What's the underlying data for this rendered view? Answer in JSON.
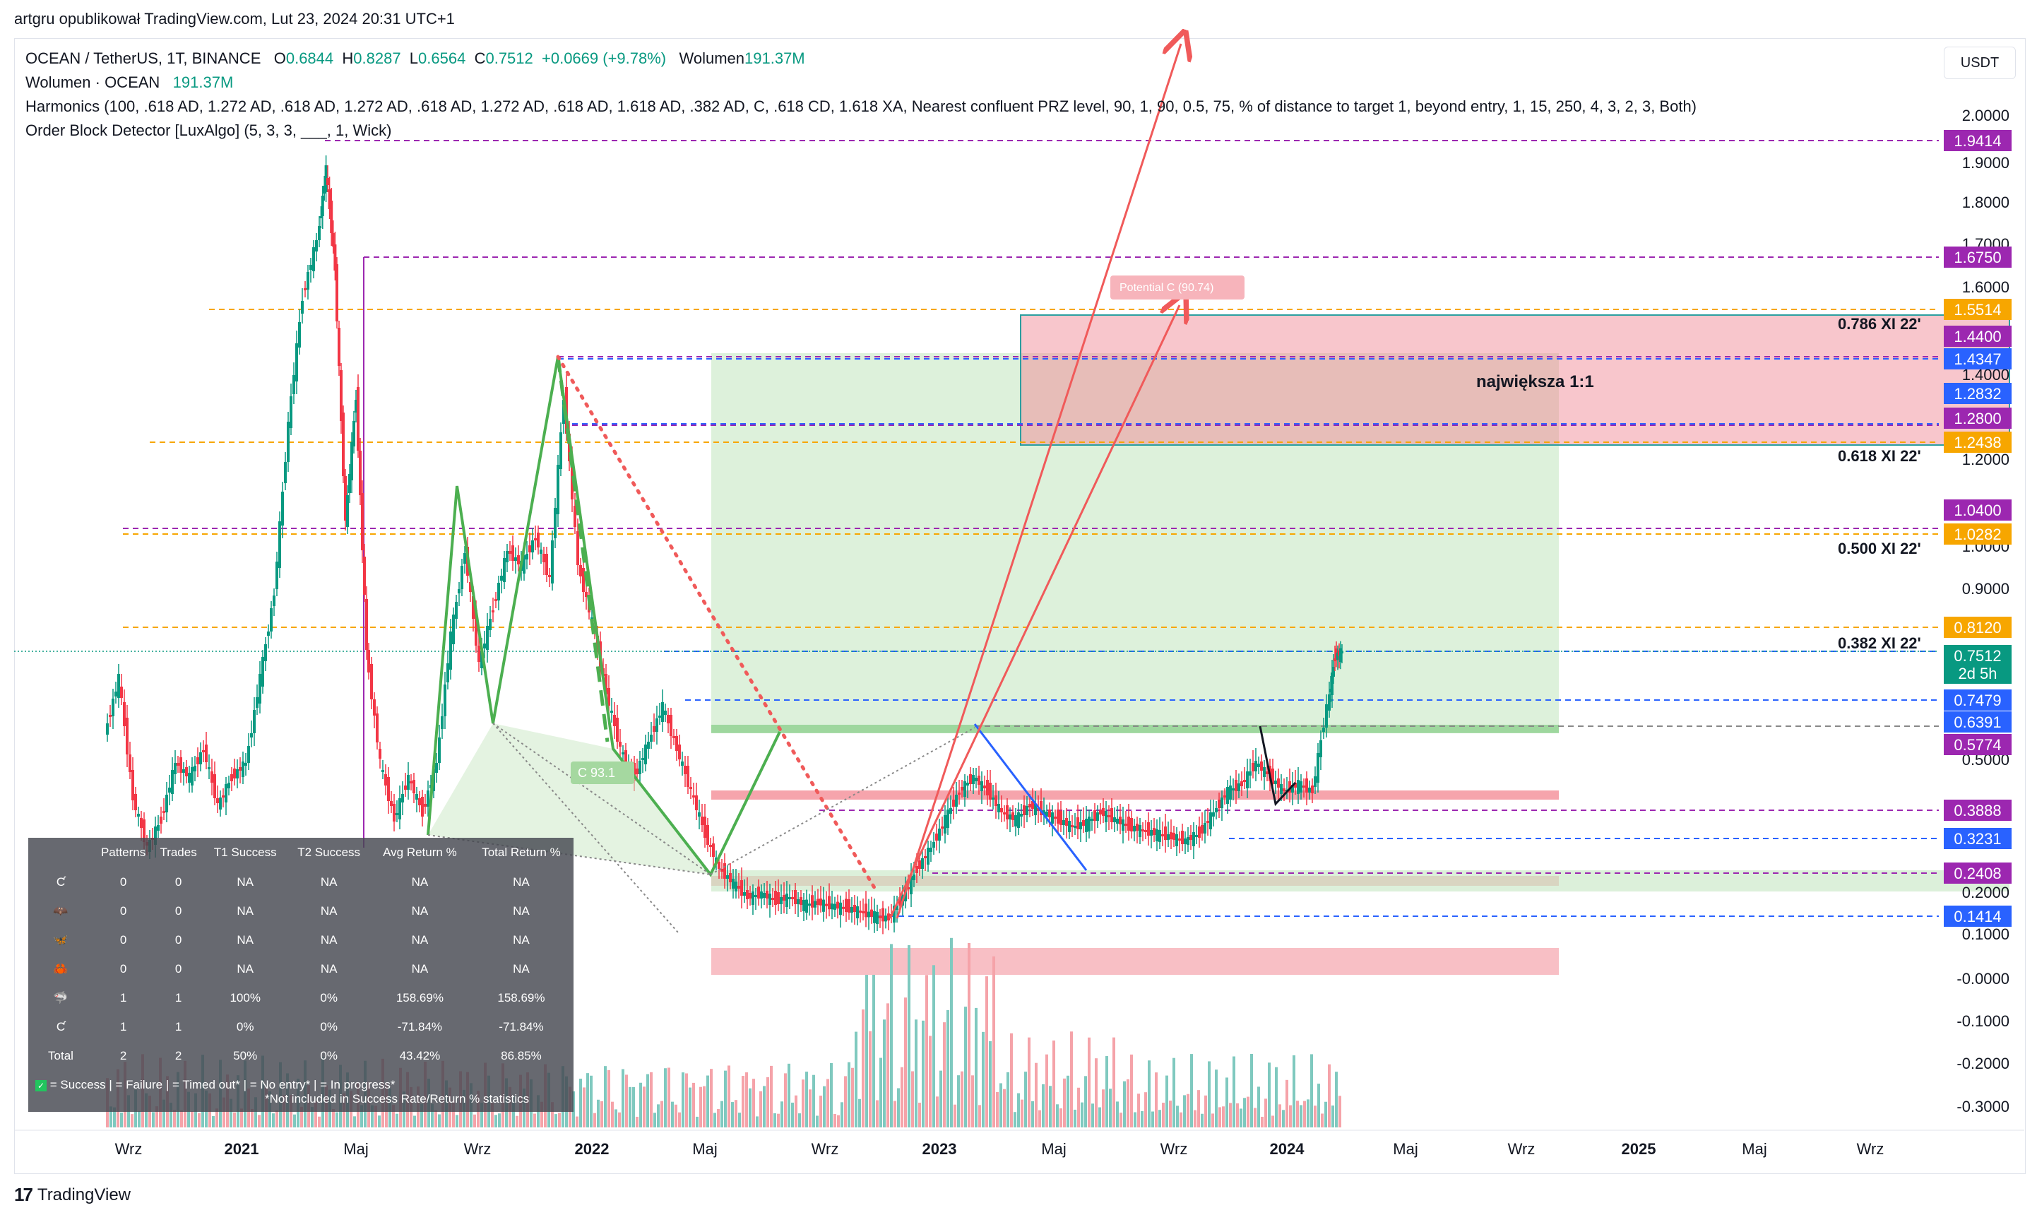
{
  "credit": "artgru opublikował TradingView.com, Lut 23, 2024 20:31 UTC+1",
  "legend": {
    "symbol": "OCEAN / TetherUS, 1T, BINANCE",
    "o_label": "O",
    "o": "0.6844",
    "h_label": "H",
    "h": "0.8287",
    "l_label": "L",
    "l": "0.6564",
    "c_label": "C",
    "c": "0.7512",
    "change": "+0.0669 (+9.78%)",
    "vol_label": "Wolumen",
    "vol": "191.37M",
    "volume_line_label": "Wolumen · OCEAN",
    "volume_line_value": "191.37M",
    "harmonics": "Harmonics (100, .618 AD, 1.272 AD, .618 AD, 1.272 AD, .618 AD, 1.272 AD, .618 AD, 1.618 AD, .382 AD, C, .618 CD, 1.618 XA, Nearest confluent PRZ level, 90, 1, 90, 0.5, 75, % of distance to target 1, beyond entry, 1, 15, 250, 4, 3, 2, 3, Both)",
    "order_block": "Order Block Detector [LuxAlgo] (5, 3, 3, ___, 1, Wick)"
  },
  "currency_button": "USDT",
  "brand": "TradingView",
  "colors": {
    "up": "#089981",
    "down": "#f23645",
    "orange": "#f7a600",
    "purple": "#9c27b0",
    "blue": "#2962ff"
  },
  "chart_data": {
    "type": "candlestick",
    "y_axis": {
      "scale": "log",
      "ticks": [
        "2.0000",
        "1.9000",
        "1.8000",
        "1.7000",
        "1.6000",
        "1.5000",
        "1.4000",
        "1.3000",
        "1.2000",
        "1.0000",
        "0.9000",
        "0.5000",
        "0.2000",
        "0.1000",
        "-0.0000",
        "-0.1000",
        "-0.2000",
        "-0.3000"
      ]
    },
    "x_axis": {
      "labels": [
        "Wrz",
        "2021",
        "Maj",
        "Wrz",
        "2022",
        "Maj",
        "Wrz",
        "2023",
        "Maj",
        "Wrz",
        "2024",
        "Maj",
        "Wrz",
        "2025",
        "Maj",
        "Wrz"
      ]
    },
    "price_labels": [
      {
        "value": "1.9414",
        "color": "#9c27b0"
      },
      {
        "value": "1.6750",
        "color": "#9c27b0"
      },
      {
        "value": "1.5514",
        "color": "#f7a600"
      },
      {
        "value": "1.4400",
        "color": "#9c27b0"
      },
      {
        "value": "1.4347",
        "color": "#2962ff"
      },
      {
        "value": "1.2832",
        "color": "#2962ff"
      },
      {
        "value": "1.2800",
        "color": "#9c27b0"
      },
      {
        "value": "1.2438",
        "color": "#f7a600"
      },
      {
        "value": "1.0400",
        "color": "#9c27b0"
      },
      {
        "value": "1.0282",
        "color": "#f7a600"
      },
      {
        "value": "0.8120",
        "color": "#f7a600"
      },
      {
        "value": "0.7512",
        "color": "#089981"
      },
      {
        "value": "2d 5h",
        "color": "#089981"
      },
      {
        "value": "0.7479",
        "color": "#2962ff"
      },
      {
        "value": "0.6391",
        "color": "#2962ff"
      },
      {
        "value": "0.5774",
        "color": "#9c27b0"
      },
      {
        "value": "0.3888",
        "color": "#9c27b0"
      },
      {
        "value": "0.3231",
        "color": "#2962ff"
      },
      {
        "value": "0.2408",
        "color": "#9c27b0"
      },
      {
        "value": "0.1414",
        "color": "#2962ff"
      }
    ],
    "fib_labels": [
      "0.786 XI 22'",
      "0.618 XI 22'",
      "0.500 XI 22'",
      "0.382 XI 22'"
    ],
    "annotations": [
      "największa 1:1",
      "Potential C (90.74)",
      "C 93.1"
    ],
    "stats_table": {
      "headers": [
        "Patterns",
        "Trades",
        "T1 Success",
        "T2 Success",
        "Avg Return %",
        "Total Return %"
      ],
      "rows": [
        {
          "icon": "C",
          "patterns": "0",
          "trades": "0",
          "t1": "NA",
          "t2": "NA",
          "avg": "NA",
          "total": "NA"
        },
        {
          "icon": "bat",
          "patterns": "0",
          "trades": "0",
          "t1": "NA",
          "t2": "NA",
          "avg": "NA",
          "total": "NA"
        },
        {
          "icon": "butterfly",
          "patterns": "0",
          "trades": "0",
          "t1": "NA",
          "t2": "NA",
          "avg": "NA",
          "total": "NA"
        },
        {
          "icon": "crab",
          "patterns": "0",
          "trades": "0",
          "t1": "NA",
          "t2": "NA",
          "avg": "NA",
          "total": "NA"
        },
        {
          "icon": "shark",
          "patterns": "1",
          "trades": "1",
          "t1": "100%",
          "t2": "0%",
          "avg": "158.69%",
          "total": "158.69%"
        },
        {
          "icon": "C",
          "patterns": "1",
          "trades": "1",
          "t1": "0%",
          "t2": "0%",
          "avg": "-71.84%",
          "total": "-71.84%"
        },
        {
          "icon": "Total",
          "patterns": "2",
          "trades": "2",
          "t1": "50%",
          "t2": "0%",
          "avg": "43.42%",
          "total": "86.85%"
        }
      ],
      "footer": "= Success |  = Failure |  = Timed out* |  = No entry* |  = In progress*",
      "footnote": "*Not included in Success Rate/Return % statistics"
    }
  }
}
